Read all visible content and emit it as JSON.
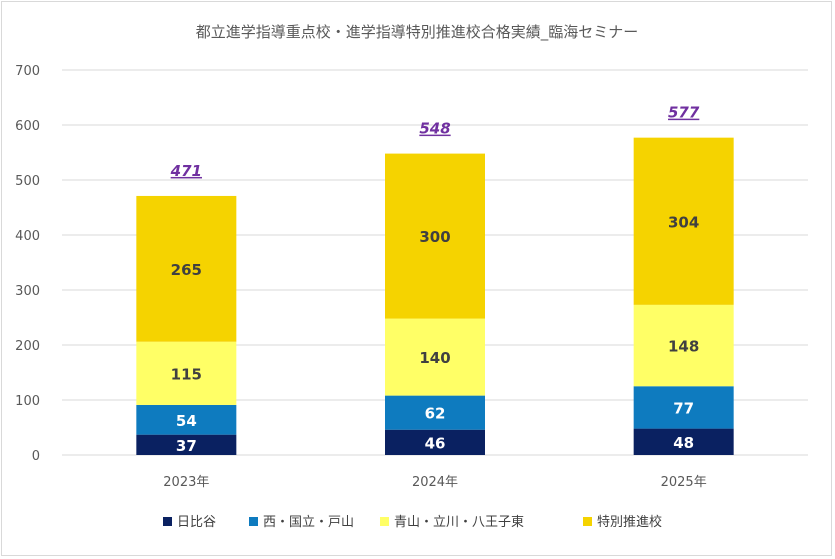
{
  "chart_data": {
    "type": "bar",
    "stacked": true,
    "title": "都立進学指導重点校・進学指導特別推進校合格実績_臨海セミナー",
    "categories": [
      "2023年",
      "2024年",
      "2025年"
    ],
    "series": [
      {
        "name": "日比谷",
        "values": [
          37,
          46,
          48
        ],
        "color": "#0a2161",
        "label_color": "#ffffff"
      },
      {
        "name": "西・国立・戸山",
        "values": [
          54,
          62,
          77
        ],
        "color": "#0e7bbf",
        "label_color": "#ffffff"
      },
      {
        "name": "青山・立川・八王子東",
        "values": [
          115,
          140,
          148
        ],
        "color": "#ffff66",
        "label_color": "#404040"
      },
      {
        "name": "特別推進校",
        "values": [
          265,
          300,
          304
        ],
        "color": "#f5d300",
        "label_color": "#404040"
      }
    ],
    "totals": [
      471,
      548,
      577
    ],
    "ylim": [
      0,
      700
    ],
    "yticks": [
      0,
      100,
      200,
      300,
      400,
      500,
      600,
      700
    ],
    "grid": true,
    "legend_position": "bottom"
  }
}
